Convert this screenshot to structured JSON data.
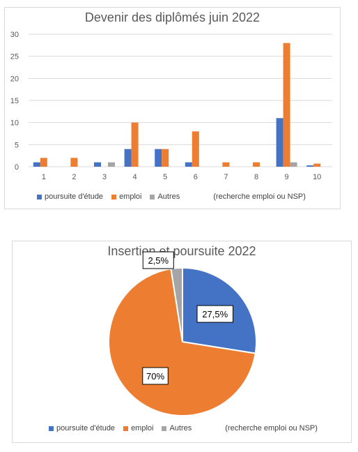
{
  "colors": {
    "poursuite": "#4472c4",
    "emploi": "#ed7d31",
    "autres": "#a5a5a5",
    "grid": "#d9d9d9",
    "axis_text": "#595959"
  },
  "legend": {
    "items": [
      "poursuite d'étude",
      "emploi",
      "Autres"
    ],
    "note": "(recherche emploi ou NSP)"
  },
  "chart_data": [
    {
      "type": "bar",
      "title": "Devenir des diplômés juin 2022",
      "categories": [
        "1",
        "2",
        "3",
        "4",
        "5",
        "6",
        "7",
        "8",
        "9",
        "10"
      ],
      "series": [
        {
          "name": "poursuite d'étude",
          "values": [
            1,
            0,
            1,
            4,
            4,
            1,
            0,
            0,
            11,
            0.3
          ]
        },
        {
          "name": "emploi",
          "values": [
            2,
            2,
            0,
            10,
            4,
            8,
            1,
            1,
            28,
            0.7
          ]
        },
        {
          "name": "Autres",
          "values": [
            0,
            0,
            1,
            0,
            0,
            0,
            0,
            0,
            1,
            0
          ]
        }
      ],
      "yticks": [
        "0",
        "5",
        "10",
        "15",
        "20",
        "25",
        "30"
      ],
      "ylim": [
        0,
        30
      ],
      "grid": true,
      "legend_position": "bottom",
      "legend_note": "(recherche emploi ou NSP)"
    },
    {
      "type": "pie",
      "title": "Insertion et poursuite 2022",
      "labels": [
        "poursuite d'étude",
        "emploi",
        "Autres"
      ],
      "values": [
        27.5,
        70,
        2.5
      ],
      "data_labels": [
        "27,5%",
        "70%",
        "2,5%"
      ],
      "legend_position": "bottom",
      "legend_note": "(recherche emploi ou NSP)"
    }
  ]
}
